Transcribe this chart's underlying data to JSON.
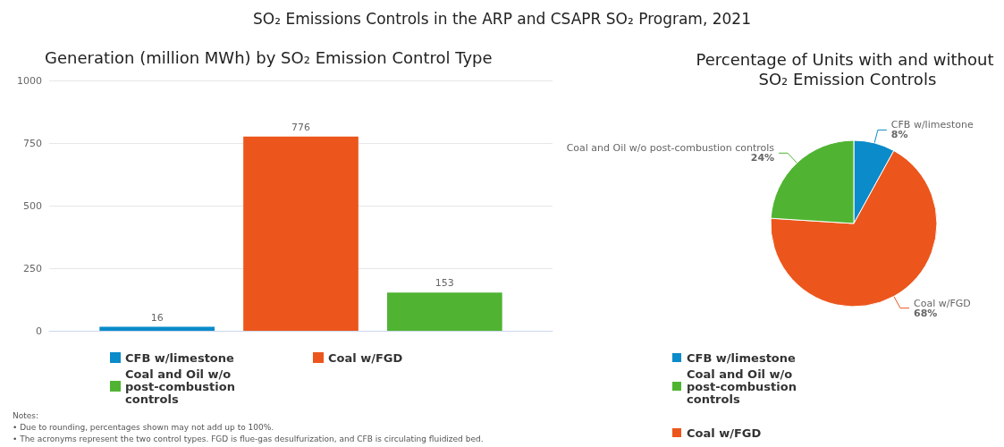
{
  "chart_data": [
    {
      "type": "bar",
      "title": "Generation (million MWh) by SO₂ Emission Control Type",
      "categories": [
        null
      ],
      "series": [
        {
          "name": "CFB w/limestone",
          "color": "#0b8bc9",
          "values": [
            16
          ]
        },
        {
          "name": "Coal w/FGD",
          "color": "#ec561c",
          "values": [
            776
          ]
        },
        {
          "name": "Coal and Oil w/o post-combustion controls",
          "color": "#50b432",
          "values": [
            153
          ]
        }
      ],
      "ylim": [
        0,
        1000
      ],
      "yticks": [
        0,
        250,
        500,
        750,
        1000
      ],
      "grid": "y",
      "legend": "bottom",
      "data_labels": true,
      "tick_labels": "y",
      "annotations": [
        "SO₂ Emissions Controls in the ARP and CSAPR SO₂ Program, 2021",
        "Notes:",
        "• Due to rounding, percentages shown may not add up to 100%.",
        "• The acronyms represent the two control types. FGD is flue-gas desulfurization, and CFB is circulating fluidized bed."
      ]
    },
    {
      "type": "pie",
      "title": "Percentage of Units with and without SO₂ Emission Controls",
      "categories": [
        "CFB w/limestone",
        "Coal w/FGD",
        "Coal and Oil w/o post-combustion controls"
      ],
      "values": [
        8,
        68,
        24
      ],
      "value_labels": [
        "8%",
        "68%",
        "24%"
      ],
      "colors": [
        "#0b8bc9",
        "#ec561c",
        "#50b432"
      ],
      "legend": "bottom",
      "data_labels": true
    }
  ]
}
